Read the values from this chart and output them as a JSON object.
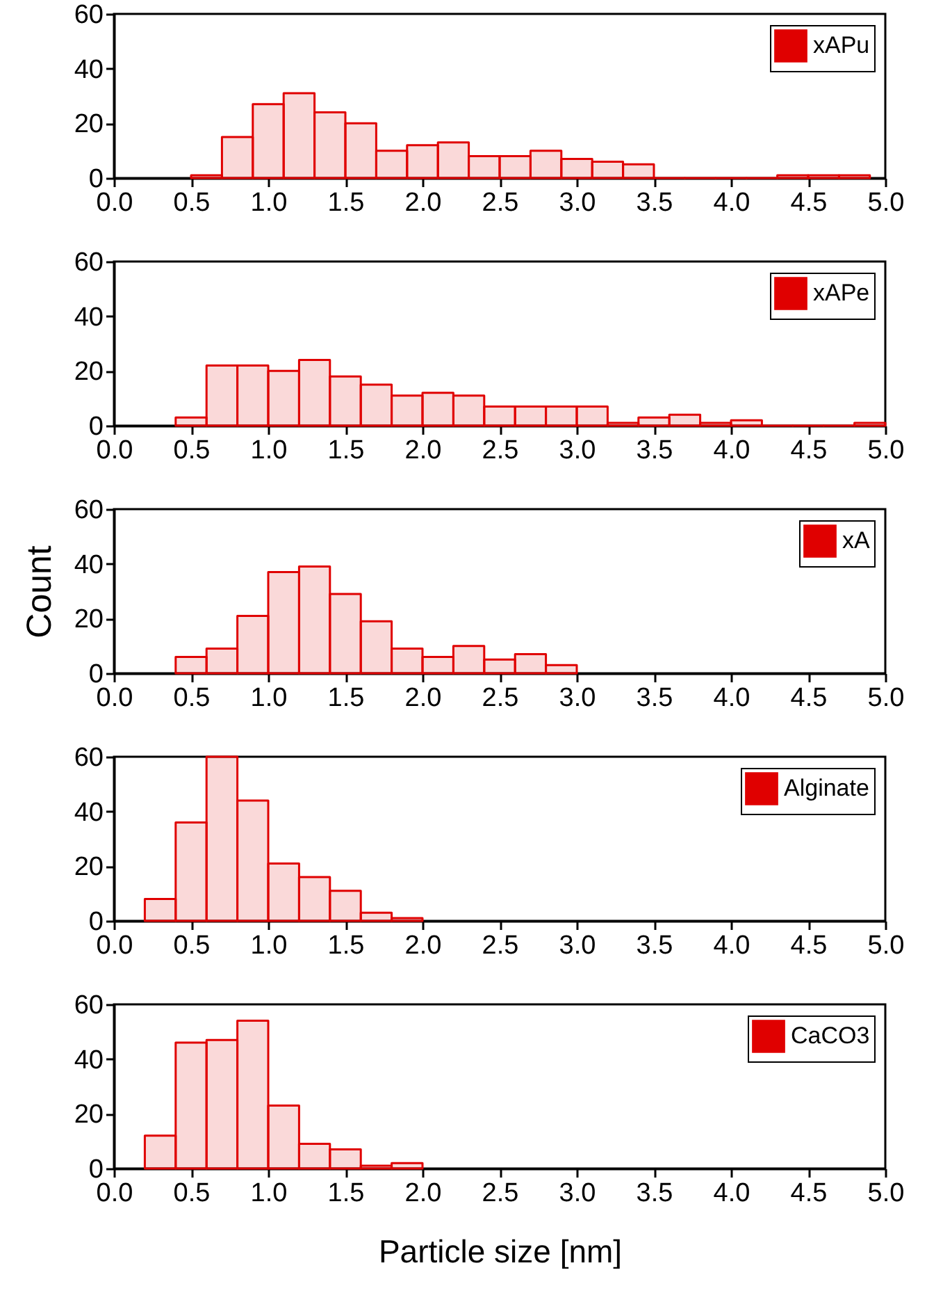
{
  "chart_data": [
    {
      "type": "histogram",
      "bins": [
        0.5,
        0.7,
        0.9,
        1.1,
        1.3,
        1.5,
        1.7,
        1.9,
        2.1,
        2.3,
        2.5,
        2.7,
        2.9,
        3.1,
        3.3,
        3.5,
        3.7,
        3.9,
        4.1,
        4.3,
        4.5,
        4.7,
        4.9
      ],
      "series": [
        {
          "name": "xAPu",
          "color": "#e00000",
          "values": [
            1,
            15,
            27,
            31,
            24,
            20,
            10,
            12,
            13,
            8,
            8,
            10,
            7,
            6,
            5,
            0,
            0,
            0,
            0,
            1,
            1,
            1
          ]
        }
      ],
      "xlim": [
        0,
        5
      ],
      "xticks": [
        {
          "value": 0,
          "label": "0.0"
        },
        0.5,
        {
          "value": 1,
          "label": "1.0"
        },
        1.5,
        {
          "value": 2,
          "label": "2.0"
        },
        2.5,
        {
          "value": 3,
          "label": "3.0"
        },
        3.5,
        {
          "value": 4,
          "label": "4.0"
        },
        4.5,
        {
          "value": 5,
          "label": "5.0"
        }
      ],
      "ylim": [
        0,
        60
      ],
      "yticks": [
        0,
        20,
        40,
        60
      ],
      "legend": "top right"
    },
    {
      "type": "histogram",
      "bins": [
        0.4,
        0.6,
        0.8,
        1.0,
        1.2,
        1.4,
        1.6,
        1.8,
        2.0,
        2.2,
        2.4,
        2.6,
        2.8,
        3.0,
        3.2,
        3.4,
        3.6,
        3.8,
        4.0,
        4.2,
        4.4,
        4.6,
        4.8,
        5.0
      ],
      "series": [
        {
          "name": "xAPe",
          "color": "#e00000",
          "values": [
            3,
            22,
            22,
            20,
            24,
            18,
            15,
            11,
            12,
            11,
            7,
            7,
            7,
            7,
            1,
            3,
            4,
            1,
            2,
            0,
            0,
            0,
            1
          ]
        }
      ],
      "xlim": [
        0,
        5
      ],
      "xticks": [
        {
          "value": 0,
          "label": "0.0"
        },
        0.5,
        {
          "value": 1,
          "label": "1.0"
        },
        1.5,
        {
          "value": 2,
          "label": "2.0"
        },
        2.5,
        {
          "value": 3,
          "label": "3.0"
        },
        3.5,
        {
          "value": 4,
          "label": "4.0"
        },
        4.5,
        {
          "value": 5,
          "label": "5.0"
        }
      ],
      "ylim": [
        0,
        60
      ],
      "yticks": [
        0,
        20,
        40,
        60
      ],
      "legend": "top right"
    },
    {
      "type": "histogram",
      "ylabel": "Count",
      "bins": [
        0.4,
        0.6,
        0.8,
        1.0,
        1.2,
        1.4,
        1.6,
        1.8,
        2.0,
        2.2,
        2.4,
        2.6,
        2.8,
        3.0
      ],
      "series": [
        {
          "name": "xA",
          "color": "#e00000",
          "values": [
            6,
            9,
            21,
            37,
            39,
            29,
            19,
            9,
            6,
            10,
            5,
            7,
            3
          ]
        }
      ],
      "xlim": [
        0,
        5
      ],
      "xticks": [
        {
          "value": 0,
          "label": "0.0"
        },
        0.5,
        {
          "value": 1,
          "label": "1.0"
        },
        1.5,
        {
          "value": 2,
          "label": "2.0"
        },
        2.5,
        {
          "value": 3,
          "label": "3.0"
        },
        3.5,
        {
          "value": 4,
          "label": "4.0"
        },
        4.5,
        {
          "value": 5,
          "label": "5.0"
        }
      ],
      "ylim": [
        0,
        60
      ],
      "yticks": [
        0,
        20,
        40,
        60
      ],
      "legend": "top right"
    },
    {
      "type": "histogram",
      "bins": [
        0.2,
        0.4,
        0.6,
        0.8,
        1.0,
        1.2,
        1.4,
        1.6,
        1.8,
        2.0
      ],
      "series": [
        {
          "name": "Alginate",
          "color": "#e00000",
          "values": [
            8,
            36,
            60,
            44,
            21,
            16,
            11,
            3,
            1
          ]
        }
      ],
      "xlim": [
        0,
        5
      ],
      "xticks": [
        {
          "value": 0,
          "label": "0.0"
        },
        0.5,
        {
          "value": 1,
          "label": "1.0"
        },
        1.5,
        {
          "value": 2,
          "label": "2.0"
        },
        2.5,
        {
          "value": 3,
          "label": "3.0"
        },
        3.5,
        {
          "value": 4,
          "label": "4.0"
        },
        4.5,
        {
          "value": 5,
          "label": "5.0"
        }
      ],
      "ylim": [
        0,
        60
      ],
      "yticks": [
        0,
        20,
        40,
        60
      ],
      "legend": "top right"
    },
    {
      "type": "histogram",
      "xlabel": "Particle size [nm]",
      "bins": [
        0.2,
        0.4,
        0.6,
        0.8,
        1.0,
        1.2,
        1.4,
        1.6,
        1.8,
        2.0
      ],
      "series": [
        {
          "name": "CaCO3",
          "color": "#e00000",
          "values": [
            12,
            46,
            47,
            54,
            23,
            9,
            7,
            1,
            2
          ]
        }
      ],
      "xlim": [
        0,
        5
      ],
      "xticks": [
        {
          "value": 0,
          "label": "0.0"
        },
        0.5,
        {
          "value": 1,
          "label": "1.0"
        },
        1.5,
        {
          "value": 2,
          "label": "2.0"
        },
        2.5,
        {
          "value": 3,
          "label": "3.0"
        },
        3.5,
        {
          "value": 4,
          "label": "4.0"
        },
        4.5,
        {
          "value": 5,
          "label": "5.0"
        }
      ],
      "ylim": [
        0,
        60
      ],
      "yticks": [
        0,
        20,
        40,
        60
      ],
      "legend": "top right"
    }
  ]
}
